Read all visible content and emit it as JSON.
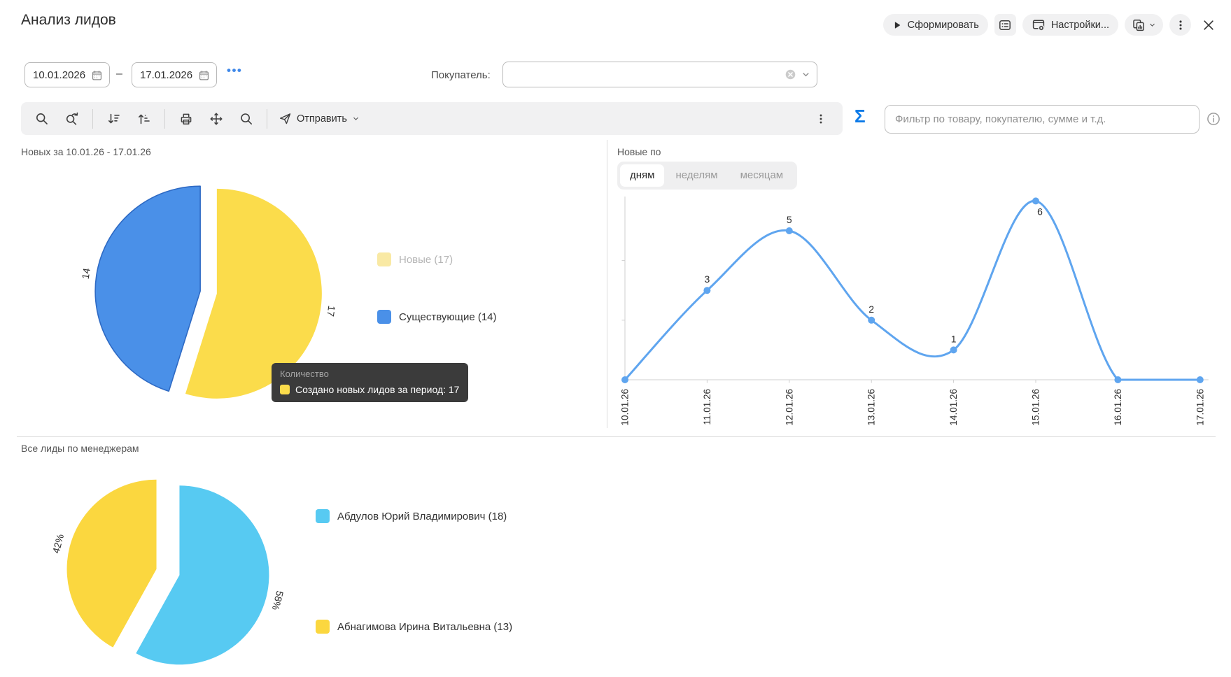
{
  "header": {
    "title": "Анализ лидов",
    "generate_label": "Сформировать",
    "settings_label": "Настройки..."
  },
  "filters": {
    "date_from": "10.01.2026",
    "date_to": "17.01.2026",
    "dash": "–",
    "more_label": "•••",
    "buyer_label": "Покупатель:",
    "buyer_value": ""
  },
  "toolbar": {
    "send_label": "Отправить",
    "sigma": "Σ",
    "filter_placeholder": "Фильтр по товару, покупателю, сумме и т.д."
  },
  "panels": {
    "new_pie": {
      "title": "Новых за 10.01.26 - 17.01.26"
    },
    "by_day": {
      "title": "Новые по",
      "tabs": [
        "дням",
        "неделям",
        "месяцам"
      ],
      "active_tab": "дням"
    },
    "managers": {
      "title": "Все лиды по менеджерам"
    }
  },
  "tooltip": {
    "header": "Количество",
    "text": "Создано новых лидов за период: 17",
    "swatch_color": "#FBDC4B"
  },
  "chart_data": [
    {
      "type": "pie",
      "title": "Новых за 10.01.26 - 17.01.26",
      "slices": [
        {
          "label": "Новые",
          "value": 17,
          "data_label": "17",
          "color": "#FBDC4B",
          "legend_color": "#F9E9A4",
          "legend_label": "Новые (17)",
          "dimmed": true
        },
        {
          "label": "Существующие",
          "value": 14,
          "data_label": "14",
          "color": "#4A90E8",
          "stroke": "#2E6AC4",
          "legend_color": "#4A90E8",
          "legend_label": "Существующие (14)",
          "dimmed": false
        }
      ],
      "legend_position": "right"
    },
    {
      "type": "line",
      "title": "Новые по дням",
      "x": [
        "10.01.26",
        "11.01.26",
        "12.01.26",
        "13.01.26",
        "14.01.26",
        "15.01.26",
        "16.01.26",
        "17.01.26"
      ],
      "values": [
        0,
        3,
        5,
        2,
        1,
        6,
        0,
        0
      ],
      "ylim": [
        0,
        6
      ],
      "yticks": [
        2,
        4
      ],
      "color": "#5FA5EF",
      "grid": false
    },
    {
      "type": "pie",
      "title": "Все лиды по менеджерам",
      "slices": [
        {
          "label": "Абдулов Юрий Владимирович",
          "value": 18,
          "data_label": "58%",
          "color": "#57CAF2",
          "legend_color": "#57CAF2",
          "legend_label": "Абдулов Юрий Владимирович (18)",
          "dimmed": false
        },
        {
          "label": "Абнагимова Ирина Витальевна",
          "value": 13,
          "data_label": "42%",
          "color": "#FBD73F",
          "legend_color": "#FBD73F",
          "legend_label": "Абнагимова Ирина Витальевна (13)",
          "dimmed": false
        }
      ],
      "legend_position": "right"
    }
  ]
}
